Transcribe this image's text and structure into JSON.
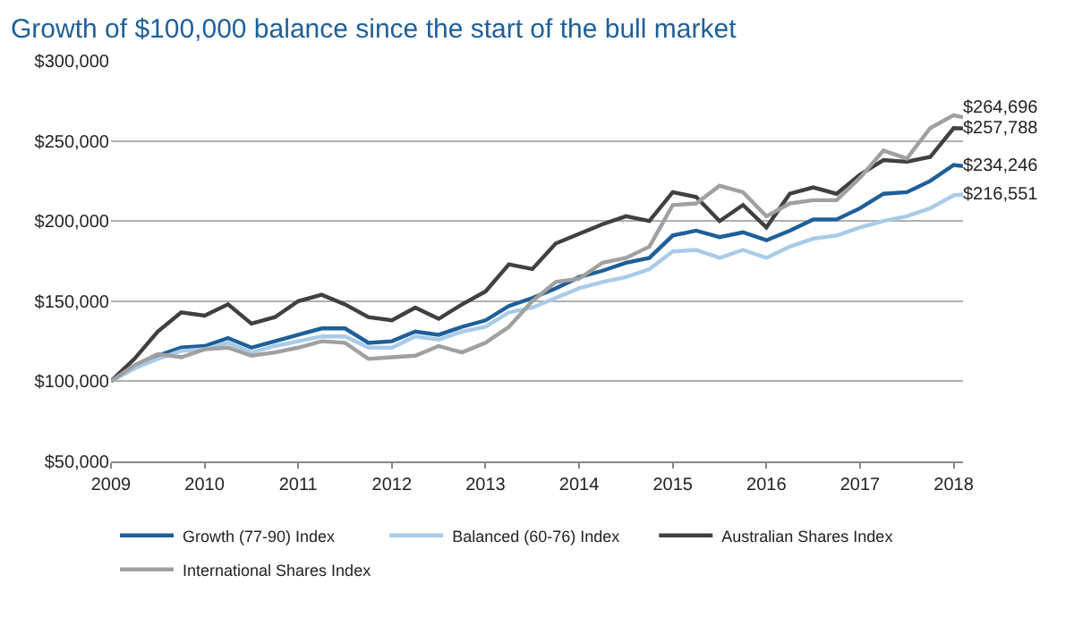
{
  "chart_data": {
    "type": "line",
    "title": "Growth of $100,000 balance since the start of the bull market",
    "x": [
      2009.0,
      2009.25,
      2009.5,
      2009.75,
      2010.0,
      2010.25,
      2010.5,
      2010.75,
      2011.0,
      2011.25,
      2011.5,
      2011.75,
      2012.0,
      2012.25,
      2012.5,
      2012.75,
      2013.0,
      2013.25,
      2013.5,
      2013.75,
      2014.0,
      2014.25,
      2014.5,
      2014.75,
      2015.0,
      2015.25,
      2015.5,
      2015.75,
      2016.0,
      2016.25,
      2016.5,
      2016.75,
      2017.0,
      2017.25,
      2017.5,
      2017.75,
      2018.0,
      2018.1
    ],
    "series": [
      {
        "name": "Growth (77-90) Index",
        "color": "#1f5f99",
        "values": [
          100000,
          109000,
          116000,
          121000,
          122000,
          127000,
          121000,
          125000,
          129000,
          133000,
          133000,
          124000,
          125000,
          131000,
          129000,
          134000,
          138000,
          147000,
          152000,
          158000,
          165000,
          169000,
          174000,
          177000,
          191000,
          194000,
          190000,
          193000,
          188000,
          194000,
          201000,
          201000,
          208000,
          217000,
          218000,
          225000,
          235000,
          234246
        ],
        "value_labels": [
          null,
          null,
          null,
          null,
          null,
          null,
          null,
          null,
          null,
          null,
          null,
          null,
          null,
          null,
          null,
          null,
          null,
          null,
          null,
          null,
          null,
          null,
          null,
          null,
          null,
          null,
          null,
          null,
          null,
          null,
          null,
          null,
          null,
          null,
          null,
          null,
          null,
          "$234,246"
        ]
      },
      {
        "name": "Balanced (60-76) Index",
        "color": "#a9cbe8",
        "values": [
          100000,
          108000,
          114000,
          119000,
          120000,
          124000,
          118000,
          122000,
          125000,
          128000,
          128000,
          121000,
          121000,
          128000,
          126000,
          131000,
          134000,
          143000,
          146000,
          152000,
          158000,
          162000,
          165000,
          170000,
          181000,
          182000,
          177000,
          182000,
          177000,
          184000,
          189000,
          191000,
          196000,
          200000,
          203000,
          208000,
          216000,
          216551
        ],
        "value_labels": [
          null,
          null,
          null,
          null,
          null,
          null,
          null,
          null,
          null,
          null,
          null,
          null,
          null,
          null,
          null,
          null,
          null,
          null,
          null,
          null,
          null,
          null,
          null,
          null,
          null,
          null,
          null,
          null,
          null,
          null,
          null,
          null,
          null,
          null,
          null,
          null,
          null,
          "$216,551"
        ]
      },
      {
        "name": "Australian Shares Index",
        "color": "#404040",
        "values": [
          100000,
          114000,
          131000,
          143000,
          141000,
          148000,
          136000,
          140000,
          150000,
          154000,
          148000,
          140000,
          138000,
          146000,
          139000,
          148000,
          156000,
          173000,
          170000,
          186000,
          192000,
          198000,
          203000,
          200000,
          218000,
          215000,
          200000,
          210000,
          196000,
          217000,
          221000,
          217000,
          229000,
          238000,
          237000,
          240000,
          258000,
          257788
        ],
        "value_labels": [
          null,
          null,
          null,
          null,
          null,
          null,
          null,
          null,
          null,
          null,
          null,
          null,
          null,
          null,
          null,
          null,
          null,
          null,
          null,
          null,
          null,
          null,
          null,
          null,
          null,
          null,
          null,
          null,
          null,
          null,
          null,
          null,
          null,
          null,
          null,
          null,
          null,
          "$257,788"
        ]
      },
      {
        "name": "International Shares Index",
        "color": "#a0a0a0",
        "values": [
          100000,
          110000,
          117000,
          115000,
          120000,
          121000,
          116000,
          118000,
          121000,
          125000,
          124000,
          114000,
          115000,
          116000,
          122000,
          118000,
          124000,
          134000,
          150000,
          162000,
          164000,
          174000,
          177000,
          184000,
          210000,
          211000,
          222000,
          218000,
          203000,
          211000,
          213000,
          213000,
          227000,
          244000,
          239000,
          258000,
          266000,
          264696
        ],
        "value_labels": [
          null,
          null,
          null,
          null,
          null,
          null,
          null,
          null,
          null,
          null,
          null,
          null,
          null,
          null,
          null,
          null,
          null,
          null,
          null,
          null,
          null,
          null,
          null,
          null,
          null,
          null,
          null,
          null,
          null,
          null,
          null,
          null,
          null,
          null,
          null,
          null,
          null,
          "$264,696"
        ]
      }
    ],
    "xlim": [
      2009.0,
      2018.1
    ],
    "xticks": [
      2009,
      2010,
      2011,
      2012,
      2013,
      2014,
      2015,
      2016,
      2017,
      2018
    ],
    "ylim": [
      50000,
      300000
    ],
    "yticks": [
      {
        "value": 50000,
        "label": "$50,000"
      },
      {
        "value": 100000,
        "label": "$100,000"
      },
      {
        "value": 150000,
        "label": "$150,000"
      },
      {
        "value": 200000,
        "label": "$200,000"
      },
      {
        "value": 250000,
        "label": "$250,000"
      },
      {
        "value": 300000,
        "label": "$300,000"
      }
    ],
    "grid": "y",
    "legend": "bottom",
    "marker": "none",
    "line_style": "solid"
  }
}
